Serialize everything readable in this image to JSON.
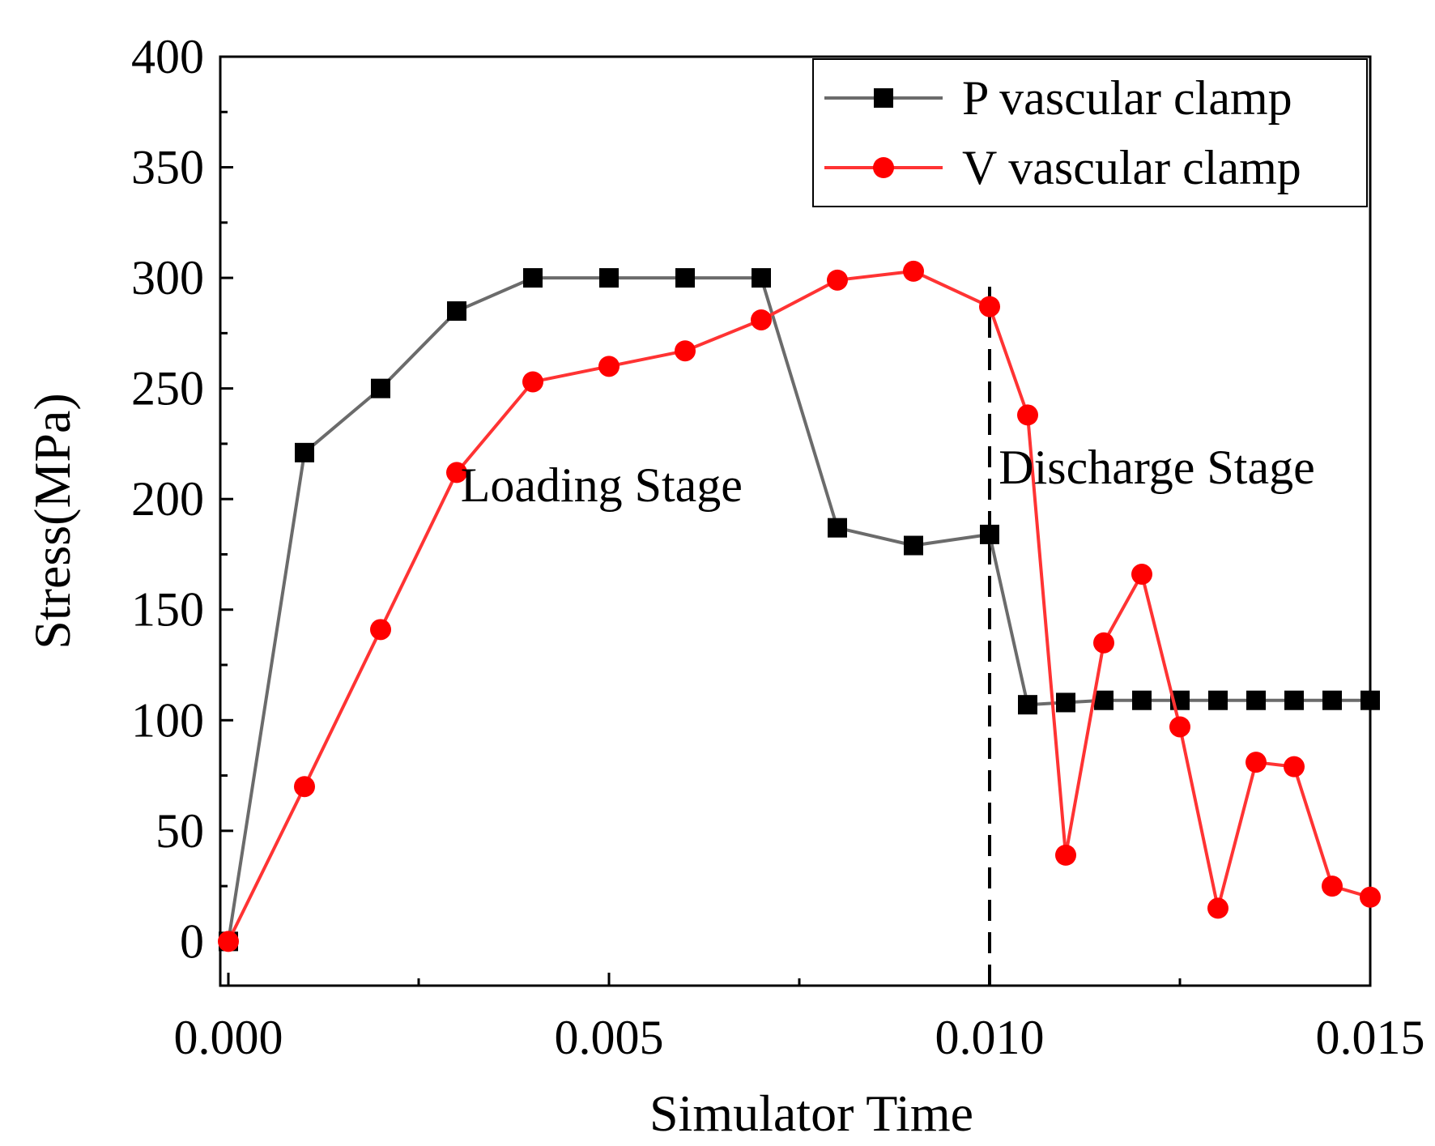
{
  "chart_data": {
    "type": "line",
    "title": "",
    "xlabel": "Simulator Time",
    "ylabel": "Stress(MPa)",
    "xlim": [
      0.0,
      0.015
    ],
    "ylim": [
      -20,
      400
    ],
    "x_ticks": [
      {
        "value": 0.0,
        "label": "0.000"
      },
      {
        "value": 0.005,
        "label": "0.005"
      },
      {
        "value": 0.01,
        "label": "0.010"
      },
      {
        "value": 0.015,
        "label": "0.015"
      }
    ],
    "x_minor_ticks": [
      0.0025,
      0.0075,
      0.0125
    ],
    "y_ticks": [
      {
        "value": 0,
        "label": "0"
      },
      {
        "value": 50,
        "label": "50"
      },
      {
        "value": 100,
        "label": "100"
      },
      {
        "value": 150,
        "label": "150"
      },
      {
        "value": 200,
        "label": "200"
      },
      {
        "value": 250,
        "label": "250"
      },
      {
        "value": 300,
        "label": "300"
      },
      {
        "value": 350,
        "label": "350"
      },
      {
        "value": 400,
        "label": "400"
      }
    ],
    "y_minor_ticks": [
      25,
      75,
      125,
      175,
      225,
      275,
      325,
      375
    ],
    "series": [
      {
        "name": "P vascular clamp",
        "color": "#6b6b6b",
        "marker": "square",
        "marker_color": "#000000",
        "x": [
          0.0,
          0.001,
          0.002,
          0.003,
          0.004,
          0.005,
          0.006,
          0.007,
          0.008,
          0.009,
          0.01,
          0.0105,
          0.011,
          0.0115,
          0.012,
          0.0125,
          0.013,
          0.0135,
          0.014,
          0.0145,
          0.015
        ],
        "values": [
          0,
          221,
          250,
          285,
          300,
          300,
          300,
          300,
          187,
          179,
          184,
          107,
          108,
          109,
          109,
          109,
          109,
          109,
          109,
          109,
          109
        ]
      },
      {
        "name": "V vascular clamp",
        "color": "#ff3333",
        "marker": "circle",
        "marker_color": "#ff0000",
        "x": [
          0.0,
          0.001,
          0.002,
          0.003,
          0.004,
          0.005,
          0.006,
          0.007,
          0.008,
          0.009,
          0.01,
          0.0105,
          0.011,
          0.0115,
          0.012,
          0.0125,
          0.013,
          0.0135,
          0.014,
          0.0145,
          0.015
        ],
        "values": [
          0,
          70,
          141,
          212,
          253,
          260,
          267,
          281,
          299,
          303,
          287,
          238,
          39,
          135,
          166,
          97,
          15,
          81,
          79,
          25,
          20
        ]
      }
    ],
    "vertical_line": {
      "x": 0.01,
      "y_from": -20,
      "y_to": 296,
      "style": "dashed"
    },
    "annotations": [
      {
        "text": "Loading Stage",
        "x": 0.00305,
        "y": 199
      },
      {
        "text": "Discharge Stage",
        "x": 0.01012,
        "y": 207
      }
    ],
    "legend": {
      "position": "top-right",
      "entries": [
        "P vascular clamp",
        "V vascular clamp"
      ]
    }
  }
}
